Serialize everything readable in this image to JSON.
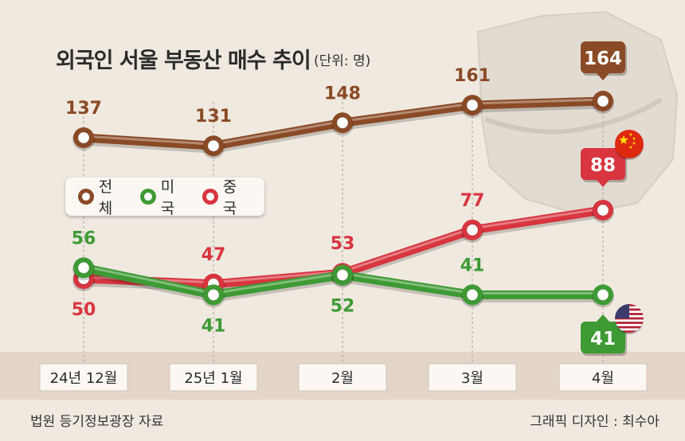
{
  "title": "외국인 서울 부동산 매수 추이",
  "unit": "(단위: 명)",
  "legend": [
    {
      "name": "전체",
      "color": "#8a4a26"
    },
    {
      "name": "미국",
      "color": "#3e9a34"
    },
    {
      "name": "중국",
      "color": "#d8353f"
    }
  ],
  "source": "법원 등기정보광장 자료",
  "credit": "그래픽 디자인 : 최수아",
  "flags": {
    "china": "china-flag-icon",
    "usa": "usa-flag-icon"
  },
  "chart_data": {
    "type": "line",
    "categories": [
      "24년 12월",
      "25년 1월",
      "2월",
      "3월",
      "4월"
    ],
    "series": [
      {
        "name": "전체",
        "values": [
          137,
          131,
          148,
          161,
          164
        ],
        "color": "#8a4a26"
      },
      {
        "name": "미국",
        "values": [
          56,
          41,
          52,
          41,
          41
        ],
        "color": "#3e9a34"
      },
      {
        "name": "중국",
        "values": [
          50,
          47,
          53,
          77,
          88
        ],
        "color": "#d8353f"
      }
    ],
    "data_labels": {
      "전체": [
        "137",
        "131",
        "148",
        "161",
        "164"
      ],
      "미국": [
        "56",
        "41",
        "52",
        "41",
        "41"
      ],
      "중국": [
        "50",
        "47",
        "53",
        "77",
        "88"
      ]
    },
    "highlight_last_labels": true
  }
}
